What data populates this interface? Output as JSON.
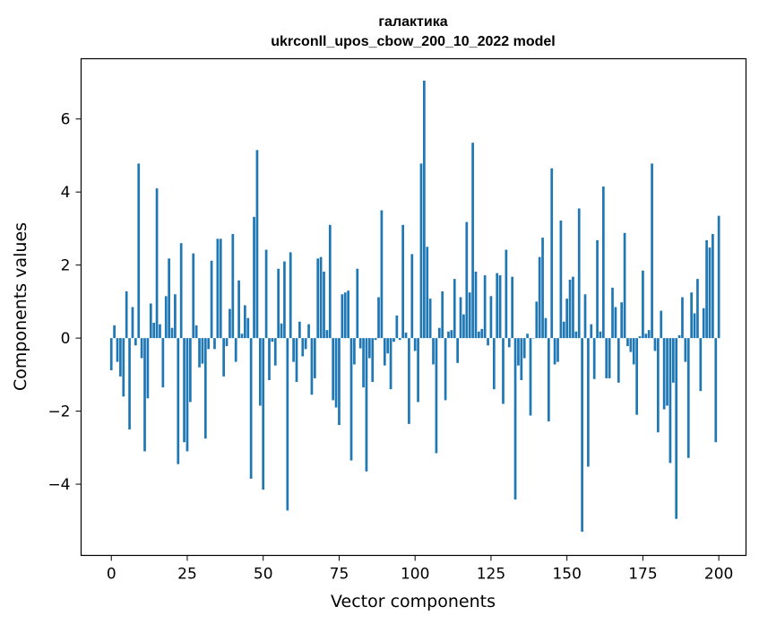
{
  "chart_data": {
    "type": "bar",
    "title": "галактика",
    "subtitle": "ukrconll_upos_cbow_200_10_2022 model",
    "xlabel": "Vector components",
    "ylabel": "Components values",
    "xlim": [
      -9.95,
      208.95
    ],
    "ylim": [
      -5.95,
      7.65
    ],
    "bar_color": "#1f77b4",
    "grid": false,
    "legend": "none",
    "x_ticks": [
      {
        "value": 0,
        "label": "0"
      },
      {
        "value": 25,
        "label": "25"
      },
      {
        "value": 50,
        "label": "50"
      },
      {
        "value": 75,
        "label": "75"
      },
      {
        "value": 100,
        "label": "100"
      },
      {
        "value": 125,
        "label": "125"
      },
      {
        "value": 150,
        "label": "150"
      },
      {
        "value": 175,
        "label": "175"
      },
      {
        "value": 200,
        "label": "200"
      }
    ],
    "y_ticks": [
      {
        "value": -4,
        "label": "−4"
      },
      {
        "value": -2,
        "label": "−2"
      },
      {
        "value": 0,
        "label": "0"
      },
      {
        "value": 2,
        "label": "2"
      },
      {
        "value": 4,
        "label": "4"
      },
      {
        "value": 6,
        "label": "6"
      }
    ],
    "values": [
      -0.88,
      0.35,
      -0.65,
      -1.05,
      -1.6,
      1.28,
      -2.5,
      0.85,
      -0.2,
      4.78,
      -0.55,
      -3.1,
      -1.65,
      0.95,
      0.42,
      4.1,
      0.38,
      -1.35,
      1.15,
      2.18,
      0.28,
      1.2,
      -3.45,
      2.6,
      -2.85,
      -3.1,
      -1.75,
      2.32,
      0.35,
      -0.8,
      -0.7,
      -2.75,
      -0.3,
      2.12,
      -0.3,
      2.72,
      2.72,
      -1.05,
      -0.22,
      0.8,
      2.85,
      -0.65,
      1.58,
      0.12,
      0.9,
      0.55,
      -3.85,
      3.32,
      5.15,
      -1.85,
      -4.15,
      2.42,
      -1.15,
      -0.1,
      -0.75,
      1.9,
      0.4,
      2.1,
      -4.72,
      2.35,
      -0.65,
      -1.2,
      0.45,
      -0.5,
      -0.3,
      0.38,
      -1.55,
      -1.1,
      2.18,
      2.22,
      1.82,
      0.22,
      3.1,
      -1.7,
      -1.9,
      -2.38,
      1.2,
      1.25,
      1.3,
      -3.35,
      -0.72,
      1.9,
      -0.28,
      -1.35,
      -3.65,
      -0.55,
      -1.2,
      -0.05,
      1.12,
      3.5,
      -0.75,
      -0.42,
      -1.4,
      -0.1,
      0.62,
      -0.05,
      3.1,
      0.15,
      -2.35,
      2.3,
      -0.35,
      -1.75,
      4.78,
      7.05,
      2.5,
      1.08,
      -0.72,
      -3.15,
      0.28,
      1.28,
      -1.7,
      0.18,
      0.22,
      1.62,
      -0.68,
      1.12,
      0.65,
      3.18,
      1.25,
      5.35,
      1.82,
      0.18,
      0.25,
      1.72,
      -0.2,
      1.15,
      -1.4,
      1.78,
      1.72,
      -1.8,
      2.42,
      -0.25,
      1.68,
      -4.42,
      -0.75,
      -1.15,
      -0.55,
      0.12,
      -2.12,
      0.0,
      1.0,
      2.22,
      2.75,
      0.55,
      -2.28,
      4.65,
      -0.72,
      -0.65,
      3.22,
      0.45,
      1.08,
      1.6,
      1.68,
      0.18,
      3.55,
      -5.3,
      1.2,
      -3.52,
      0.38,
      -1.12,
      2.68,
      0.18,
      4.15,
      -1.1,
      -1.1,
      1.38,
      0.85,
      -1.22,
      0.98,
      2.88,
      -0.22,
      -0.38,
      -0.72,
      -2.1,
      0.05,
      1.85,
      0.12,
      0.22,
      4.78,
      -0.35,
      -2.58,
      0.75,
      -1.95,
      -1.85,
      -3.42,
      -1.22,
      -4.95,
      0.08,
      1.12,
      -0.65,
      -3.28,
      1.25,
      0.68,
      1.62,
      -1.45,
      0.82,
      2.68,
      2.48,
      2.85,
      -2.85,
      3.35
    ]
  }
}
